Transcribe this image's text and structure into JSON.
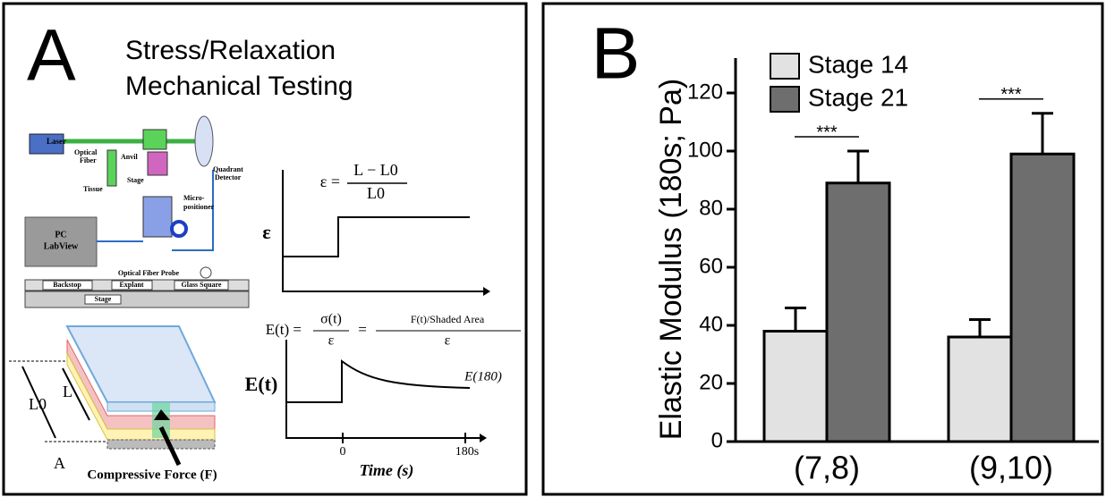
{
  "panel_a": {
    "letter": "A",
    "title_lines": [
      "Stress/Relaxation",
      "Mechanical Testing"
    ],
    "device_labels": [
      "Laser",
      "Optical",
      "Fiber",
      "Anvil",
      "Stage",
      "Tissue",
      "Quadrant",
      "Detector",
      "Micro-",
      "positioner",
      "PC",
      "LabView"
    ],
    "stage_labels": [
      "Optical Fiber Probe",
      "Backstop",
      "Explant",
      "Glass Square",
      "Stage"
    ],
    "sample_labels": [
      "L0",
      "L",
      "A",
      "Compressive Force (F)"
    ],
    "strain_formula": {
      "lhs": "ε =",
      "numerator": "L − L0",
      "denominator": "L0",
      "axis": "ε"
    },
    "modulus_formula": {
      "lhs": "E(t) =",
      "f1_num": "σ(t)",
      "f1_den": "ε",
      "eq": "=",
      "f2_num": "F(t)/Shaded Area",
      "f2_den": "ε",
      "axis": "E(t)",
      "curve_label": "E(180)",
      "tick_start": "0",
      "tick_end": "180s",
      "x_label": "Time (s)"
    }
  },
  "chart_data": {
    "type": "bar",
    "panel_letter": "B",
    "y_label": "Elastic Modulus (180s; Pa)",
    "categories": [
      "(7,8)",
      "(9,10)"
    ],
    "series": [
      {
        "name": "Stage 14",
        "color": "#e2e2e2",
        "values": [
          38,
          36
        ],
        "errors": [
          8,
          6
        ]
      },
      {
        "name": "Stage 21",
        "color": "#6e6e6e",
        "values": [
          89,
          99
        ],
        "errors": [
          11,
          14
        ]
      }
    ],
    "annotations": [
      "***",
      "***"
    ],
    "ylim": [
      0,
      132
    ],
    "yticks": [
      0,
      20,
      40,
      60,
      80,
      100,
      120
    ]
  }
}
